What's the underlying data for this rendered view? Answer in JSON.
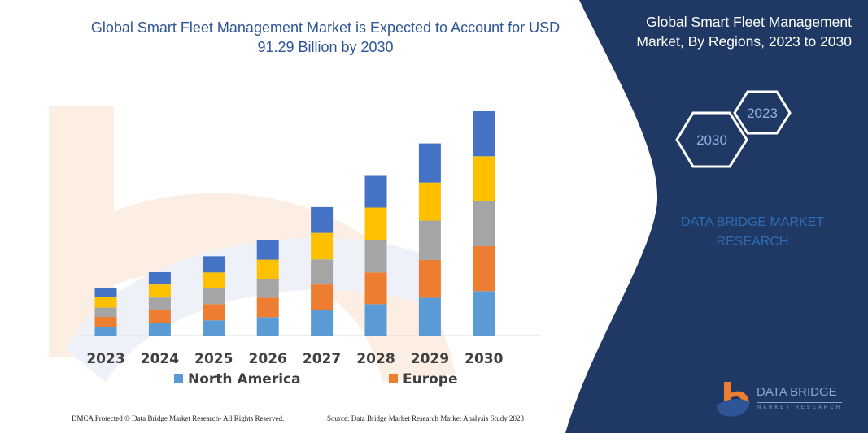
{
  "header": {
    "title": "Global Smart Fleet Management Market is Expected to Account for USD 91.29 Billion by 2030"
  },
  "watermark": {
    "main": "DATA BRIDGE",
    "sub": "MARKET RESEARCH"
  },
  "panel": {
    "title": "Global Smart Fleet Management Market, By Regions, 2023 to 2030",
    "hex_1": "2023",
    "hex_2": "2030",
    "brand_watermark": "DATA BRIDGE MARKET RESEARCH",
    "logo_text": "DATA BRIDGE",
    "logo_sub": "MARKET RESEARCH",
    "color": "#1f3864"
  },
  "footer": {
    "left": "DMCA Protected © Data Bridge Market Research-  All Rights Reserved.",
    "right": "Source:  Data Bridge Market Research  Market Analysis Study 2023"
  },
  "chart_data": {
    "type": "bar",
    "stacked": true,
    "title": "Global Smart Fleet Management Market is Expected to Account for USD 91.29 Billion by 2030",
    "xlabel": "",
    "ylabel": "",
    "unit": "USD Billion",
    "y_axis_visible": false,
    "grid": false,
    "legend_position": "bottom",
    "categories": [
      "2023",
      "2024",
      "2025",
      "2026",
      "2027",
      "2028",
      "2029",
      "2030"
    ],
    "series": [
      {
        "name": "North America",
        "color": "#5b9bd5",
        "values": [
          3.5,
          5.0,
          6.2,
          7.5,
          10.3,
          12.8,
          15.4,
          18.1
        ]
      },
      {
        "name": "Europe",
        "color": "#ed7d31",
        "values": [
          4.1,
          5.3,
          6.6,
          7.9,
          10.5,
          12.9,
          15.4,
          18.3
        ]
      },
      {
        "color": "#a5a5a5",
        "values": [
          3.8,
          5.2,
          6.6,
          7.5,
          10.2,
          13.2,
          16.0,
          18.3
        ]
      },
      {
        "color": "#ffc000",
        "values": [
          4.2,
          5.3,
          6.3,
          8.0,
          10.8,
          13.2,
          15.5,
          18.3
        ]
      },
      {
        "color": "#4472c4",
        "values": [
          3.9,
          5.0,
          6.6,
          7.9,
          10.5,
          12.9,
          15.9,
          18.3
        ]
      }
    ]
  }
}
